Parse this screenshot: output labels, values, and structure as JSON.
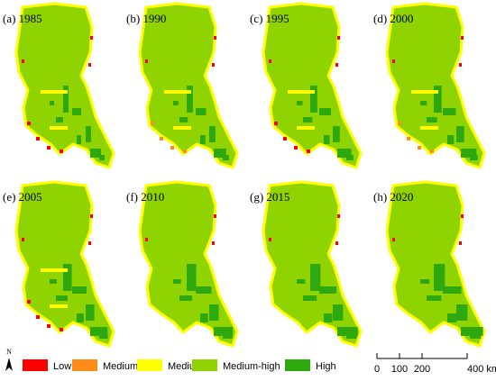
{
  "panels": [
    "(a) 1985",
    "(b) 1990",
    "(c) 1995",
    "(d) 2000",
    "(e) 2005",
    "(f) 2010",
    "(g) 2015",
    "(h) 2020"
  ],
  "legend": [
    {
      "label": "Low",
      "color": "#ff0000"
    },
    {
      "label": "Medium-low",
      "color": "#ff8c1a"
    },
    {
      "label": "Medium",
      "color": "#ffff00"
    },
    {
      "label": "Medium-high",
      "color": "#8fd400"
    },
    {
      "label": "High",
      "color": "#2ea80f"
    }
  ],
  "north": "N",
  "scale": [
    "0",
    "100",
    "200",
    "400 km"
  ]
}
